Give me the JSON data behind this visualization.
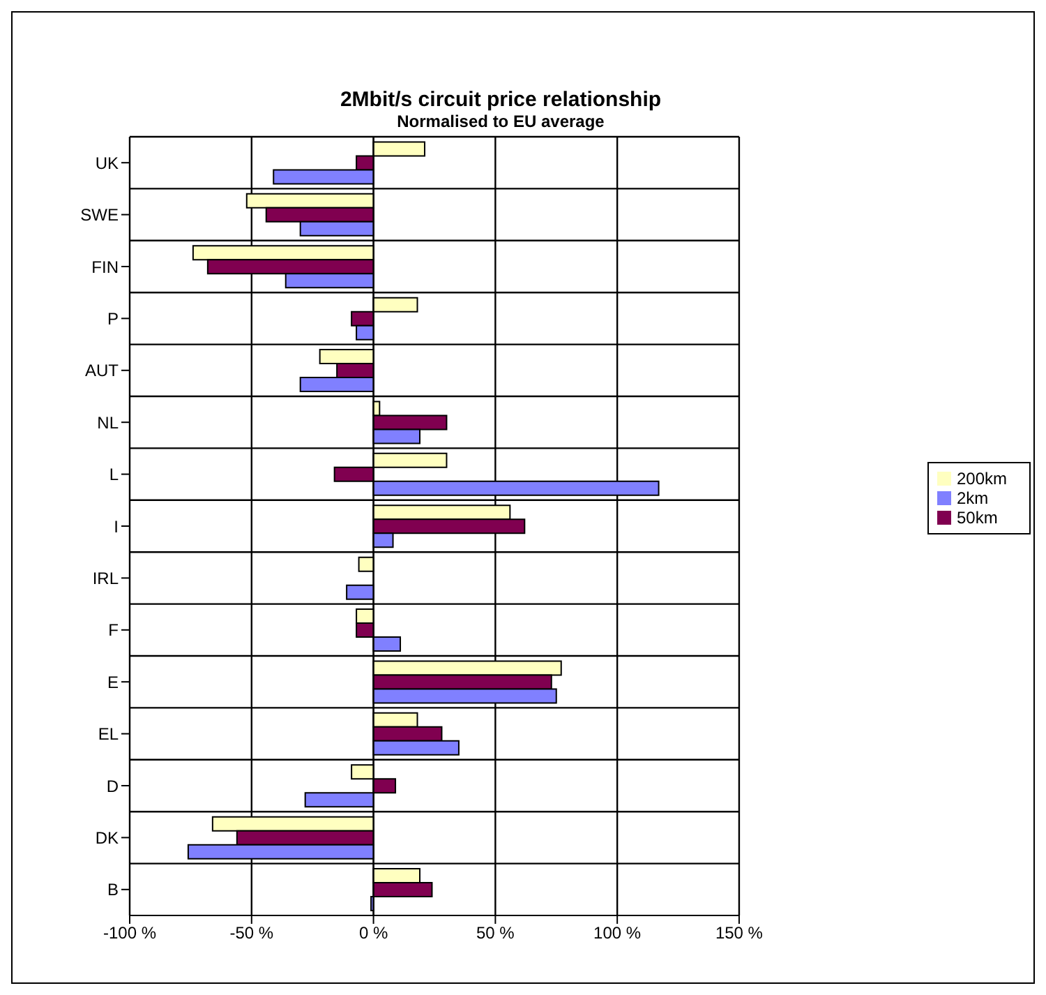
{
  "chart_data": {
    "type": "bar",
    "orientation": "horizontal",
    "title": "2Mbit/s circuit price relationship",
    "subtitle": "Normalised to EU average",
    "categories": [
      "UK",
      "SWE",
      "FIN",
      "P",
      "AUT",
      "NL",
      "L",
      "I",
      "IRL",
      "F",
      "E",
      "EL",
      "D",
      "DK",
      "B"
    ],
    "series": [
      {
        "name": "200km",
        "color": "#ffffc0",
        "values": [
          21,
          -52,
          -74,
          18,
          -22,
          2.5,
          30,
          56,
          -6,
          -7,
          77,
          18,
          -9,
          -66,
          19
        ]
      },
      {
        "name": "50km",
        "color": "#800050",
        "values": [
          -7,
          -44,
          -68,
          -9,
          -15,
          30,
          -16,
          62,
          0,
          -7,
          73,
          28,
          9,
          -56,
          24
        ]
      },
      {
        "name": "2km",
        "color": "#8080ff",
        "values": [
          -41,
          -30,
          -36,
          -7,
          -30,
          19,
          117,
          8,
          -11,
          11,
          75,
          35,
          -28,
          -76,
          -1
        ]
      }
    ],
    "xlim": [
      -100,
      150
    ],
    "xticks": [
      {
        "value": -100,
        "label": "-100 %"
      },
      {
        "value": -50,
        "label": "-50 %"
      },
      {
        "value": 0,
        "label": "0 %"
      },
      {
        "value": 50,
        "label": "50 %"
      },
      {
        "value": 100,
        "label": "100 %"
      },
      {
        "value": 150,
        "label": "150 %"
      }
    ],
    "grid": true,
    "legend": "right"
  }
}
